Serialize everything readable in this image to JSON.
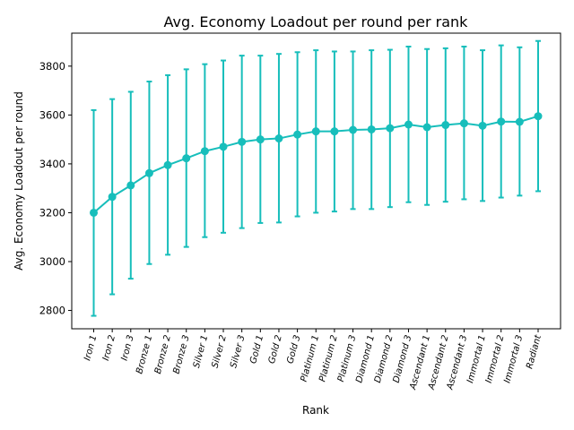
{
  "chart_data": {
    "type": "line",
    "title": "Avg. Economy Loadout per round per rank",
    "xlabel": "Rank",
    "ylabel": "Avg. Economy Loadout per round",
    "ylim": [
      2725,
      3935
    ],
    "yticks": [
      2800,
      3000,
      3200,
      3400,
      3600,
      3800
    ],
    "grid": false,
    "color": "#17bebb",
    "error_bars": true,
    "categories": [
      "Iron 1",
      "Iron 2",
      "Iron 3",
      "Bronze 1",
      "Bronze 2",
      "Bronze 3",
      "Silver 1",
      "Silver 2",
      "Silver 3",
      "Gold 1",
      "Gold 2",
      "Gold 3",
      "Platinum 1",
      "Platinum 2",
      "Platinum 3",
      "Diamond 1",
      "Diamond 2",
      "Diamond 3",
      "Ascendant 1",
      "Ascendant 2",
      "Ascendant 3",
      "Immortal 1",
      "Immortal 2",
      "Immortal 3",
      "Radiant"
    ],
    "series": [
      {
        "values": [
          3200,
          3265,
          3312,
          3362,
          3395,
          3423,
          3452,
          3470,
          3490,
          3500,
          3504,
          3520,
          3533,
          3533,
          3539,
          3541,
          3546,
          3561,
          3550,
          3559,
          3566,
          3556,
          3573,
          3572,
          3595
        ],
        "upper": [
          3620,
          3665,
          3695,
          3737,
          3763,
          3787,
          3808,
          3823,
          3843,
          3843,
          3850,
          3857,
          3865,
          3860,
          3860,
          3865,
          3867,
          3880,
          3870,
          3873,
          3880,
          3865,
          3885,
          3877,
          3903
        ],
        "lower": [
          2778,
          2866,
          2930,
          2990,
          3028,
          3060,
          3100,
          3118,
          3137,
          3158,
          3160,
          3185,
          3200,
          3205,
          3215,
          3215,
          3223,
          3243,
          3232,
          3245,
          3255,
          3248,
          3262,
          3270,
          3288
        ]
      }
    ]
  }
}
